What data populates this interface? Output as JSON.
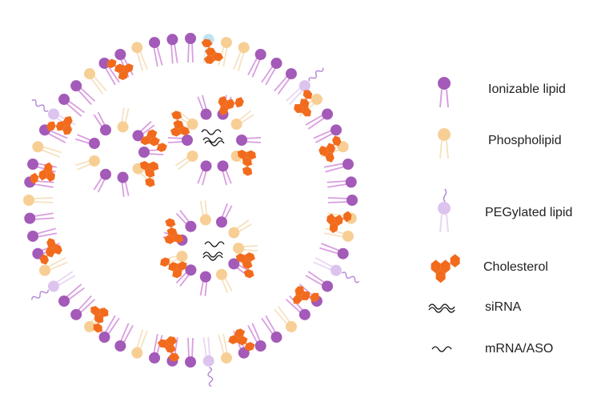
{
  "colors": {
    "ionizable_head": "#a35ab8",
    "ionizable_tail": "#d99ee0",
    "phospholipid_head": "#f7cf95",
    "phospholipid_tail": "#f6e2c0",
    "peg_head": "#dcc4ee",
    "peg_tail": "#c6a3e0",
    "peg_chain": "#b184d4",
    "cholesterol": "#f26b1d",
    "nucleic_acid": "#111111",
    "light_blue_head": "#bfe3f2"
  },
  "legend": {
    "ionizable": {
      "label": "Ionizable lipid",
      "icon": "ionizable-lipid-icon"
    },
    "phospholipid": {
      "label": "Phospholipid",
      "icon": "phospholipid-icon"
    },
    "peg": {
      "label": "PEGylated lipid",
      "icon": "pegylated-lipid-icon"
    },
    "cholesterol": {
      "label": "Cholesterol",
      "icon": "cholesterol-icon"
    },
    "sirna": {
      "label": "siRNA",
      "icon": "sirna-icon"
    },
    "mrna": {
      "label": "mRNA/ASO",
      "icon": "mrna-aso-icon"
    }
  }
}
